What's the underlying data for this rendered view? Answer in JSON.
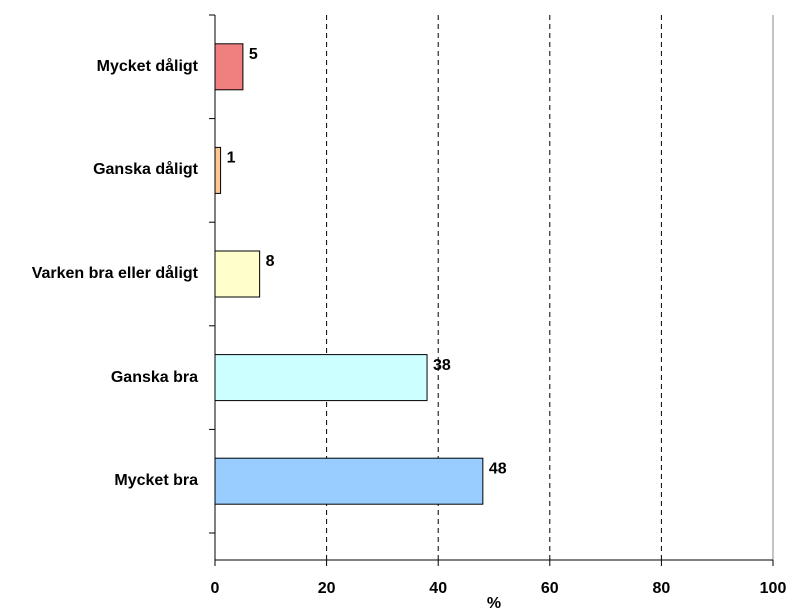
{
  "chart_data": {
    "type": "bar",
    "orientation": "horizontal",
    "categories": [
      "Mycket dåligt",
      "Ganska dåligt",
      "Varken bra eller dåligt",
      "Ganska bra",
      "Mycket bra"
    ],
    "values": [
      5,
      1,
      8,
      38,
      48
    ],
    "colors": [
      "#f08080",
      "#fcc890",
      "#ffffcc",
      "#ccffff",
      "#99ccff"
    ],
    "xlabel": "%",
    "xlim": [
      0,
      100
    ],
    "xticks": [
      0,
      20,
      40,
      60,
      80,
      100
    ],
    "grid": true,
    "grid_style": "dashed"
  }
}
